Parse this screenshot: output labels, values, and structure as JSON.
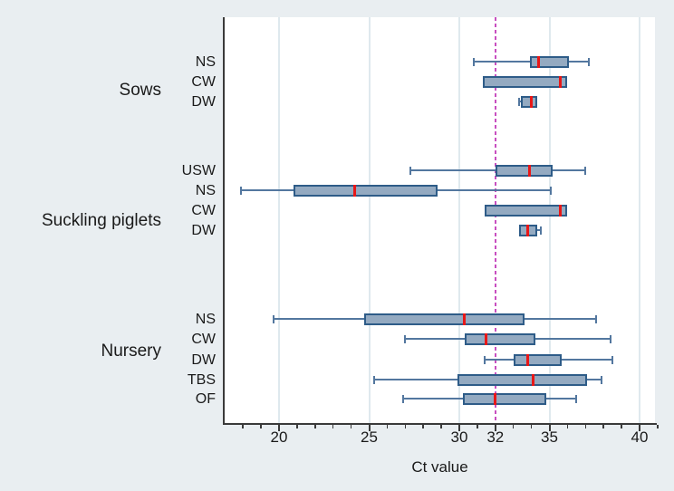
{
  "chart_data": {
    "type": "boxplot",
    "orientation": "horizontal",
    "xlabel": "Ct value",
    "x_axis": {
      "min": 17.0,
      "max": 40.9,
      "major_ticks": [
        20,
        25,
        30,
        32,
        35,
        40
      ],
      "minor_tick_start": 18,
      "minor_tick_end": 41,
      "minor_tick_step": 1,
      "gridlines": [
        20,
        25,
        30,
        35,
        40
      ],
      "grid": true
    },
    "reference_line": {
      "x": 32,
      "style": "dashed"
    },
    "groups": [
      {
        "label": "Sows",
        "rows": [
          {
            "label": "NS",
            "whisker_low": 30.8,
            "q1": 33.9,
            "median": 34.4,
            "q3": 36.1,
            "whisker_high": 37.2
          },
          {
            "label": "CW",
            "whisker_low": null,
            "q1": 31.3,
            "median": 35.6,
            "q3": 36.0,
            "whisker_high": null
          },
          {
            "label": "DW",
            "whisker_low": 33.3,
            "q1": 33.4,
            "median": 34.0,
            "q3": 34.3,
            "whisker_high": null
          }
        ]
      },
      {
        "label": "Suckling piglets",
        "rows": [
          {
            "label": "USW",
            "whisker_low": 27.3,
            "q1": 32.0,
            "median": 33.9,
            "q3": 35.2,
            "whisker_high": 37.0
          },
          {
            "label": "NS",
            "whisker_low": 17.9,
            "q1": 20.8,
            "median": 24.2,
            "q3": 28.8,
            "whisker_high": 35.1
          },
          {
            "label": "CW",
            "whisker_low": null,
            "q1": 31.4,
            "median": 35.6,
            "q3": 36.0,
            "whisker_high": null
          },
          {
            "label": "DW",
            "whisker_low": null,
            "q1": 33.3,
            "median": 33.8,
            "q3": 34.3,
            "whisker_high": 34.5
          }
        ]
      },
      {
        "label": "Nursery",
        "rows": [
          {
            "label": "NS",
            "whisker_low": 19.7,
            "q1": 24.7,
            "median": 30.3,
            "q3": 33.6,
            "whisker_high": 37.6
          },
          {
            "label": "CW",
            "whisker_low": 27.0,
            "q1": 30.3,
            "median": 31.5,
            "q3": 34.2,
            "whisker_high": 38.4
          },
          {
            "label": "DW",
            "whisker_low": 31.4,
            "q1": 33.0,
            "median": 33.8,
            "q3": 35.7,
            "whisker_high": 38.5
          },
          {
            "label": "TBS",
            "whisker_low": 25.3,
            "q1": 29.9,
            "median": 34.1,
            "q3": 37.1,
            "whisker_high": 37.9
          },
          {
            "label": "OF",
            "whisker_low": 26.9,
            "q1": 30.2,
            "median": 32.0,
            "q3": 34.8,
            "whisker_high": 36.5
          }
        ]
      }
    ],
    "colors": {
      "background": "#e9eef1",
      "plot_background": "#ffffff",
      "gridline": "#dfe9ee",
      "axis": "#3a3a3a",
      "text": "#1a1a1a",
      "box_fill": "#94aac1",
      "box_border": "#2e5c88",
      "median": "#e81717",
      "whisker": "#53779f",
      "reference_line": "#c84fc0"
    },
    "legend": "none"
  }
}
